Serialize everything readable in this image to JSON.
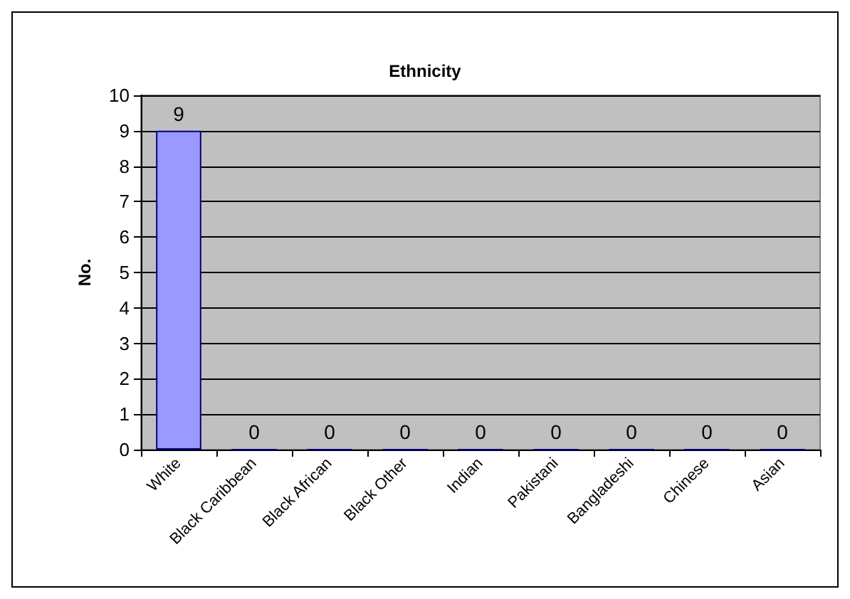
{
  "chart_data": {
    "type": "bar",
    "title": "Ethnicity",
    "ylabel": "No.",
    "categories": [
      "White",
      "Black Caribbean",
      "Black African",
      "Black Other",
      "Indian",
      "Pakistani",
      "Bangladeshi",
      "Chinese",
      "Asian"
    ],
    "values": [
      9,
      0,
      0,
      0,
      0,
      0,
      0,
      0,
      0
    ],
    "color": "#9999ff",
    "ylim": [
      0,
      10
    ],
    "yticks": [
      0,
      1,
      2,
      3,
      4,
      5,
      6,
      7,
      8,
      9,
      10
    ],
    "grid": "y",
    "data_labels": true
  }
}
